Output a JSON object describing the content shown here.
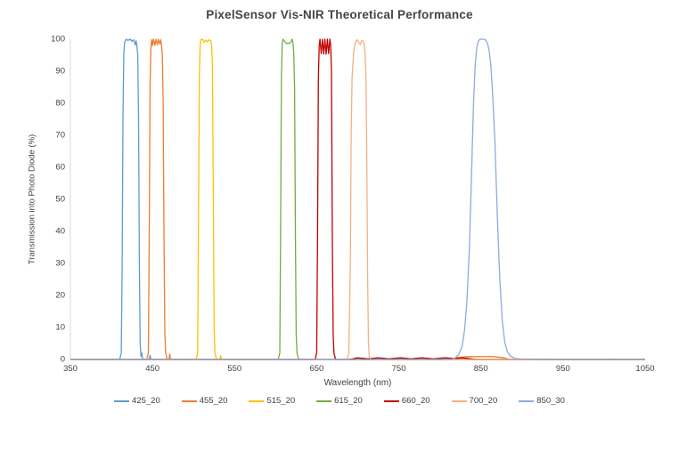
{
  "title": "PixelSensor Vis-NIR Theoretical Performance",
  "chart_data": {
    "type": "line",
    "title": "PixelSensor Vis-NIR Theoretical Performance",
    "xlabel": "Wavelength (nm)",
    "ylabel": "Transmission into Photo Diode (%)",
    "xlim": [
      350,
      1050
    ],
    "ylim": [
      0,
      100
    ],
    "x_ticks": [
      350,
      450,
      550,
      650,
      750,
      850,
      950,
      1050
    ],
    "y_ticks": [
      0,
      10,
      20,
      30,
      40,
      50,
      60,
      70,
      80,
      90,
      100
    ],
    "grid": false,
    "legend_position": "bottom",
    "axis_line_color": "#d9d9d9",
    "text_color": "#404040",
    "series": [
      {
        "name": "425_20",
        "color": "#5B9BD5",
        "center_nm": 425,
        "fwhm_nm": 20,
        "peak_percent": 100,
        "points": [
          [
            350,
            0
          ],
          [
            410,
            0
          ],
          [
            412,
            2
          ],
          [
            413,
            30
          ],
          [
            414,
            75
          ],
          [
            415,
            95
          ],
          [
            416,
            99
          ],
          [
            418,
            100
          ],
          [
            420,
            99.6
          ],
          [
            423,
            100
          ],
          [
            425,
            99.3
          ],
          [
            427,
            99.8
          ],
          [
            429,
            98.2
          ],
          [
            430,
            99.5
          ],
          [
            431,
            98
          ],
          [
            432,
            95
          ],
          [
            433,
            75
          ],
          [
            434,
            30
          ],
          [
            435,
            5
          ],
          [
            436,
            1
          ],
          [
            437,
            2
          ],
          [
            438,
            0
          ],
          [
            446,
            0
          ],
          [
            447,
            1.3
          ],
          [
            448,
            0
          ],
          [
            1050,
            0
          ]
        ]
      },
      {
        "name": "455_20",
        "color": "#ED7D31",
        "center_nm": 455,
        "fwhm_nm": 20,
        "peak_percent": 100,
        "points": [
          [
            350,
            0
          ],
          [
            443,
            0
          ],
          [
            445,
            2
          ],
          [
            446,
            40
          ],
          [
            447,
            85
          ],
          [
            448,
            97
          ],
          [
            449,
            99.8
          ],
          [
            450,
            98
          ],
          [
            451,
            100
          ],
          [
            453,
            98
          ],
          [
            454,
            100
          ],
          [
            456,
            98.2
          ],
          [
            457,
            100
          ],
          [
            459,
            98.5
          ],
          [
            460,
            99.8
          ],
          [
            461,
            98
          ],
          [
            462,
            95
          ],
          [
            463,
            80
          ],
          [
            464,
            40
          ],
          [
            465,
            8
          ],
          [
            466,
            2
          ],
          [
            468,
            0
          ],
          [
            470,
            0
          ],
          [
            471,
            1.6
          ],
          [
            472,
            0
          ],
          [
            815,
            0
          ],
          [
            822,
            0.6
          ],
          [
            835,
            0.9
          ],
          [
            850,
            0.9
          ],
          [
            865,
            0.9
          ],
          [
            878,
            0.5
          ],
          [
            885,
            0
          ],
          [
            1050,
            0
          ]
        ]
      },
      {
        "name": "515_20",
        "color": "#FFC000",
        "center_nm": 515,
        "fwhm_nm": 20,
        "peak_percent": 100,
        "points": [
          [
            350,
            0
          ],
          [
            503,
            0
          ],
          [
            505,
            2
          ],
          [
            506,
            40
          ],
          [
            507,
            88
          ],
          [
            508,
            98
          ],
          [
            509,
            99.8
          ],
          [
            511,
            100
          ],
          [
            513,
            99
          ],
          [
            515,
            99.7
          ],
          [
            517,
            99.2
          ],
          [
            519,
            99.8
          ],
          [
            521,
            99.5
          ],
          [
            522,
            98
          ],
          [
            523,
            92
          ],
          [
            524,
            55
          ],
          [
            525,
            10
          ],
          [
            526,
            2
          ],
          [
            528,
            0
          ],
          [
            532,
            0
          ],
          [
            533,
            1.2
          ],
          [
            534,
            0
          ],
          [
            1050,
            0
          ]
        ]
      },
      {
        "name": "615_20",
        "color": "#70AD47",
        "center_nm": 615,
        "fwhm_nm": 20,
        "peak_percent": 100,
        "points": [
          [
            350,
            0
          ],
          [
            603,
            0
          ],
          [
            605,
            2
          ],
          [
            606,
            40
          ],
          [
            607,
            88
          ],
          [
            608,
            98.5
          ],
          [
            609,
            100
          ],
          [
            611,
            99.3
          ],
          [
            613,
            98.6
          ],
          [
            615,
            98.8
          ],
          [
            617,
            98.6
          ],
          [
            619,
            99.3
          ],
          [
            620,
            100
          ],
          [
            621,
            99
          ],
          [
            622,
            96
          ],
          [
            623,
            85
          ],
          [
            624,
            40
          ],
          [
            625,
            8
          ],
          [
            626,
            2
          ],
          [
            628,
            0
          ],
          [
            1050,
            0
          ]
        ]
      },
      {
        "name": "660_20",
        "color": "#C00000",
        "center_nm": 660,
        "fwhm_nm": 20,
        "peak_percent": 100,
        "points": [
          [
            350,
            0
          ],
          [
            648,
            0
          ],
          [
            650,
            2
          ],
          [
            651,
            40
          ],
          [
            652,
            88
          ],
          [
            653,
            98
          ],
          [
            654,
            100
          ],
          [
            655.5,
            95.5
          ],
          [
            657,
            100
          ],
          [
            658.5,
            95.3
          ],
          [
            660,
            100
          ],
          [
            661.5,
            95.3
          ],
          [
            663,
            100
          ],
          [
            664.5,
            95.5
          ],
          [
            666,
            100
          ],
          [
            667,
            98
          ],
          [
            668,
            90
          ],
          [
            669,
            40
          ],
          [
            670,
            8
          ],
          [
            671,
            2
          ],
          [
            673,
            0
          ],
          [
            690,
            0
          ],
          [
            700,
            0.5
          ],
          [
            712,
            0.2
          ],
          [
            725,
            0.5
          ],
          [
            738,
            0.2
          ],
          [
            752,
            0.5
          ],
          [
            765,
            0.2
          ],
          [
            778,
            0.5
          ],
          [
            792,
            0.2
          ],
          [
            806,
            0.5
          ],
          [
            818,
            0.3
          ],
          [
            828,
            0.5
          ],
          [
            838,
            0.2
          ],
          [
            845,
            0
          ],
          [
            1050,
            0
          ]
        ]
      },
      {
        "name": "700_20",
        "color": "#F4B183",
        "center_nm": 700,
        "fwhm_nm": 20,
        "peak_percent": 100,
        "points": [
          [
            350,
            0
          ],
          [
            687,
            0
          ],
          [
            689,
            2
          ],
          [
            691,
            30
          ],
          [
            692,
            70
          ],
          [
            693,
            88
          ],
          [
            695,
            96
          ],
          [
            697,
            99
          ],
          [
            699,
            99.8
          ],
          [
            701,
            99
          ],
          [
            703,
            98.3
          ],
          [
            705,
            99.6
          ],
          [
            707,
            99.3
          ],
          [
            708,
            98
          ],
          [
            709,
            95
          ],
          [
            710,
            88
          ],
          [
            711,
            65
          ],
          [
            712,
            25
          ],
          [
            713,
            5
          ],
          [
            714,
            1
          ],
          [
            716,
            0
          ],
          [
            1050,
            0
          ]
        ]
      },
      {
        "name": "850_30",
        "color": "#8FAADC",
        "center_nm": 850,
        "fwhm_nm": 30,
        "peak_percent": 100,
        "points": [
          [
            350,
            0
          ],
          [
            812,
            0
          ],
          [
            818,
            0.4
          ],
          [
            823,
            1.5
          ],
          [
            827,
            4
          ],
          [
            830,
            9
          ],
          [
            833,
            18
          ],
          [
            836,
            35
          ],
          [
            839,
            62
          ],
          [
            841,
            80
          ],
          [
            843,
            92
          ],
          [
            845,
            97.5
          ],
          [
            847,
            99.5
          ],
          [
            849,
            100
          ],
          [
            853,
            100
          ],
          [
            856,
            99.7
          ],
          [
            858,
            98.7
          ],
          [
            860,
            96.5
          ],
          [
            862,
            92
          ],
          [
            864,
            84
          ],
          [
            867,
            68
          ],
          [
            870,
            45
          ],
          [
            873,
            25
          ],
          [
            876,
            12
          ],
          [
            879,
            5.5
          ],
          [
            882,
            2.5
          ],
          [
            886,
            1
          ],
          [
            892,
            0.3
          ],
          [
            900,
            0.1
          ],
          [
            1050,
            0
          ]
        ]
      }
    ]
  }
}
